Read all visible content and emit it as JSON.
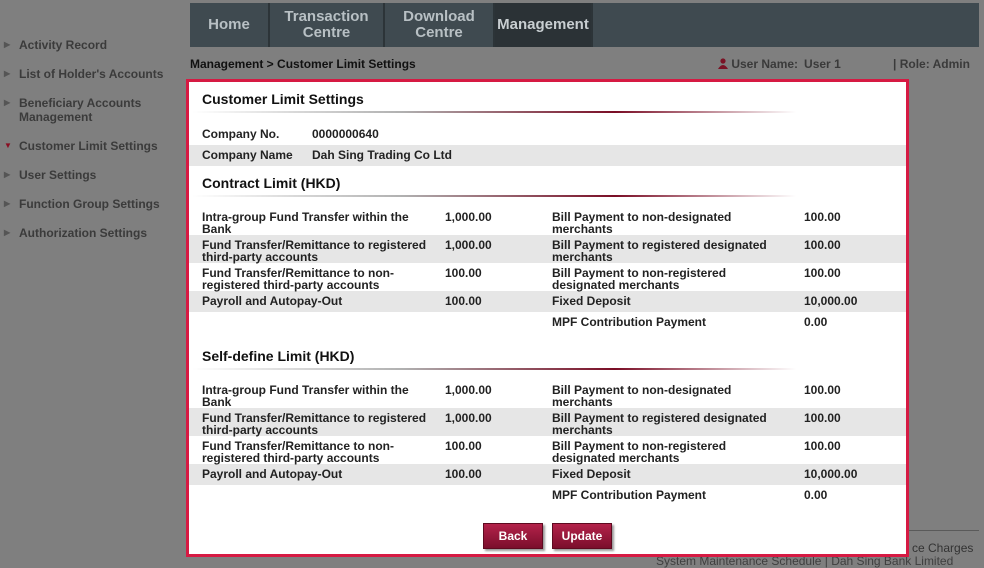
{
  "sidebar": {
    "items": [
      "Activity Record",
      "List of Holder's Accounts",
      "Beneficiary Accounts Management",
      "Customer Limit Settings",
      "User Settings",
      "Function Group Settings",
      "Authorization Settings"
    ],
    "active": 3
  },
  "nav": {
    "tabs": [
      "Home",
      "Transaction Centre",
      "Download Centre",
      "Management"
    ],
    "active": 3
  },
  "breadcrumb": "Management > Customer Limit Settings",
  "user": {
    "label": "User Name:",
    "name": "User 1",
    "role": "| Role: Admin"
  },
  "dialog": {
    "title": "Customer Limit Settings",
    "company": [
      {
        "label": "Company No.",
        "value": "0000000640"
      },
      {
        "label": "Company Name",
        "value": "Dah Sing Trading Co Ltd"
      }
    ],
    "sections": [
      {
        "title": "Contract Limit (HKD)",
        "rows": [
          [
            "Intra-group Fund Transfer within the Bank",
            "1,000.00",
            "Bill Payment to non-designated merchants",
            "100.00"
          ],
          [
            "Fund Transfer/Remittance to registered third-party accounts",
            "1,000.00",
            "Bill Payment to registered designated merchants",
            "100.00"
          ],
          [
            "Fund Transfer/Remittance to non-registered third-party accounts",
            "100.00",
            "Bill Payment to non-registered designated merchants",
            "100.00"
          ],
          [
            "Payroll and Autopay-Out",
            "100.00",
            "Fixed Deposit",
            "10,000.00"
          ],
          [
            null,
            null,
            "MPF Contribution Payment",
            "0.00"
          ]
        ]
      },
      {
        "title": "Self-define Limit (HKD)",
        "rows": [
          [
            "Intra-group Fund Transfer within the Bank",
            "1,000.00",
            "Bill Payment to non-designated merchants",
            "100.00"
          ],
          [
            "Fund Transfer/Remittance to registered third-party accounts",
            "1,000.00",
            "Bill Payment to registered designated merchants",
            "100.00"
          ],
          [
            "Fund Transfer/Remittance to non-registered third-party accounts",
            "100.00",
            "Bill Payment to non-registered designated merchants",
            "100.00"
          ],
          [
            "Payroll and Autopay-Out",
            "100.00",
            "Fixed Deposit",
            "10,000.00"
          ],
          [
            null,
            null,
            "MPF Contribution Payment",
            "0.00"
          ]
        ]
      }
    ],
    "buttons": [
      "Back",
      "Update"
    ]
  },
  "footer": [
    "ce Charges",
    "System Maintenance Schedule | Dah Sing Bank Limited"
  ]
}
